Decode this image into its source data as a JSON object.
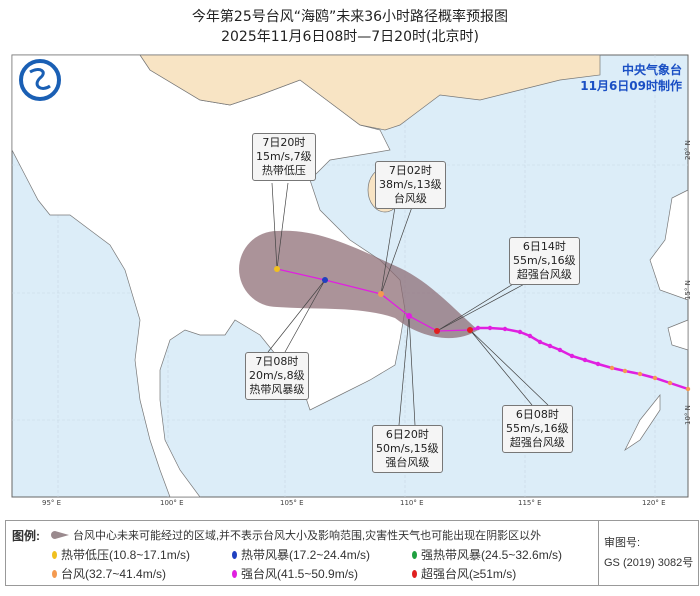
{
  "header": {
    "title": "今年第25号台风“海鸥”未来36小时路径概率预报图",
    "subtitle": "2025年11月6日08时—7日20时(北京时)"
  },
  "agency": {
    "name": "中央气象台",
    "issued": "11月6日09时制作"
  },
  "map": {
    "lon_labels": [
      "95° E",
      "100° E",
      "105° E",
      "110° E",
      "115° E",
      "120° E"
    ],
    "lat_labels": [
      "20° N",
      "15° N",
      "10° N"
    ],
    "colors": {
      "ocean": "#dcedf8",
      "land": "#ffffff",
      "china": "#f8e4c4",
      "cone": "#8a6a72",
      "track_past": "#e020e0",
      "forecast_line": "#e020e0"
    },
    "forecast_points": [
      {
        "time": "6日08时",
        "wind": "55m/s,16级",
        "level": "超强台风级",
        "color": "#e02020"
      },
      {
        "time": "6日14时",
        "wind": "55m/s,16级",
        "level": "超强台风级",
        "color": "#e02020"
      },
      {
        "time": "6日20时",
        "wind": "50m/s,15级",
        "level": "强台风级",
        "color": "#e020e0"
      },
      {
        "time": "7日02时",
        "wind": "38m/s,13级",
        "level": "台风级",
        "color": "#f49a50"
      },
      {
        "time": "7日08时",
        "wind": "20m/s,8级",
        "level": "热带风暴级",
        "color": "#2040c0"
      },
      {
        "time": "7日20时",
        "wind": "15m/s,7级",
        "level": "热带低压",
        "color": "#f0c020"
      }
    ]
  },
  "legend": {
    "title": "图例:",
    "cone_desc": "台风中心未来可能经过的区域,并不表示台风大小及影响范围,灾害性天气也可能出现在阴影区以外",
    "items": [
      {
        "label": "热带低压(10.8~17.1m/s)",
        "color": "#f0c020"
      },
      {
        "label": "热带风暴(17.2~24.4m/s)",
        "color": "#2040c0"
      },
      {
        "label": "强热带风暴(24.5~32.6m/s)",
        "color": "#20a040"
      },
      {
        "label": "台风(32.7~41.4m/s)",
        "color": "#f49a50"
      },
      {
        "label": "强台风(41.5~50.9m/s)",
        "color": "#e020e0"
      },
      {
        "label": "超强台风(≥51m/s)",
        "color": "#e02020"
      }
    ],
    "review_label": "审图号:",
    "review_no": "GS (2019) 3082号"
  }
}
